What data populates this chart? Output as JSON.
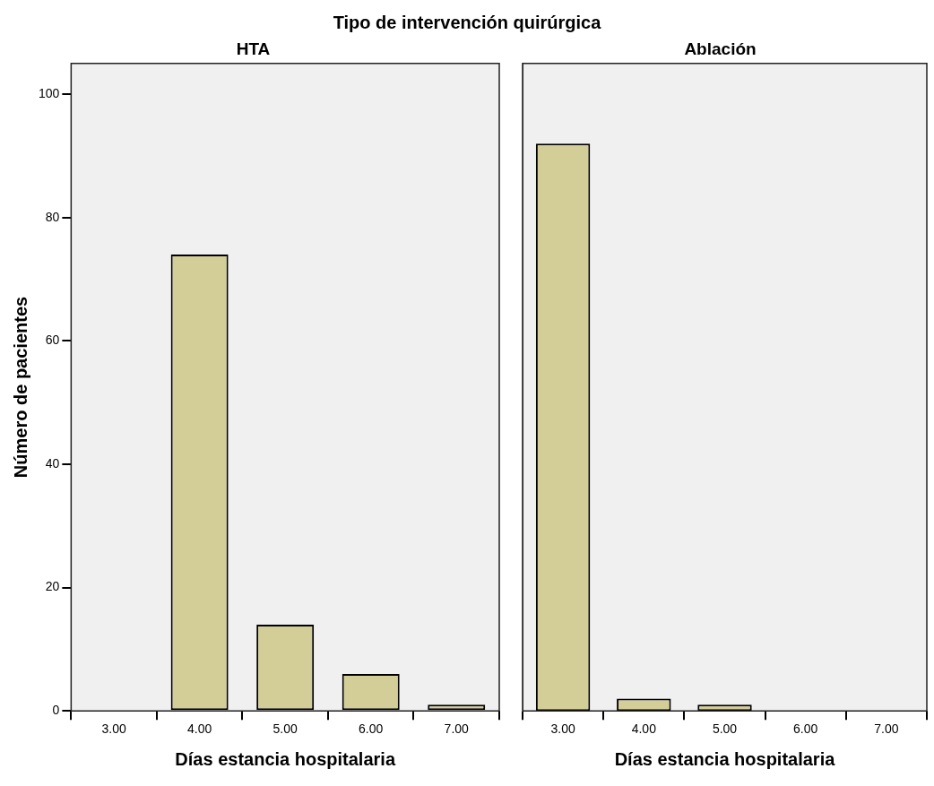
{
  "chart_data": [
    {
      "type": "bar",
      "title": "HTA",
      "annotations": [
        "Tipo de intervención quirúrgica"
      ],
      "xlabel": "Días estancia hospitalaria",
      "ylabel": "Número de pacientes",
      "categories": [
        "3.00",
        "4.00",
        "5.00",
        "6.00",
        "7.00"
      ],
      "values": [
        0,
        74,
        14,
        6,
        1
      ],
      "color": "#d3ce98",
      "ylim": [
        0,
        105
      ],
      "yticks": [
        0,
        20,
        40,
        60,
        80,
        100
      ],
      "grid": false
    },
    {
      "type": "bar",
      "title": "Ablación",
      "xlabel": "Días estancia hospitalaria",
      "categories": [
        "3.00",
        "4.00",
        "5.00",
        "6.00",
        "7.00"
      ],
      "values": [
        92,
        2,
        1,
        0,
        0
      ],
      "color": "#d3ce98",
      "ylim": [
        0,
        105
      ],
      "yticks": [
        0,
        20,
        40,
        60,
        80,
        100
      ],
      "grid": false,
      "tick_labels": "x"
    }
  ]
}
